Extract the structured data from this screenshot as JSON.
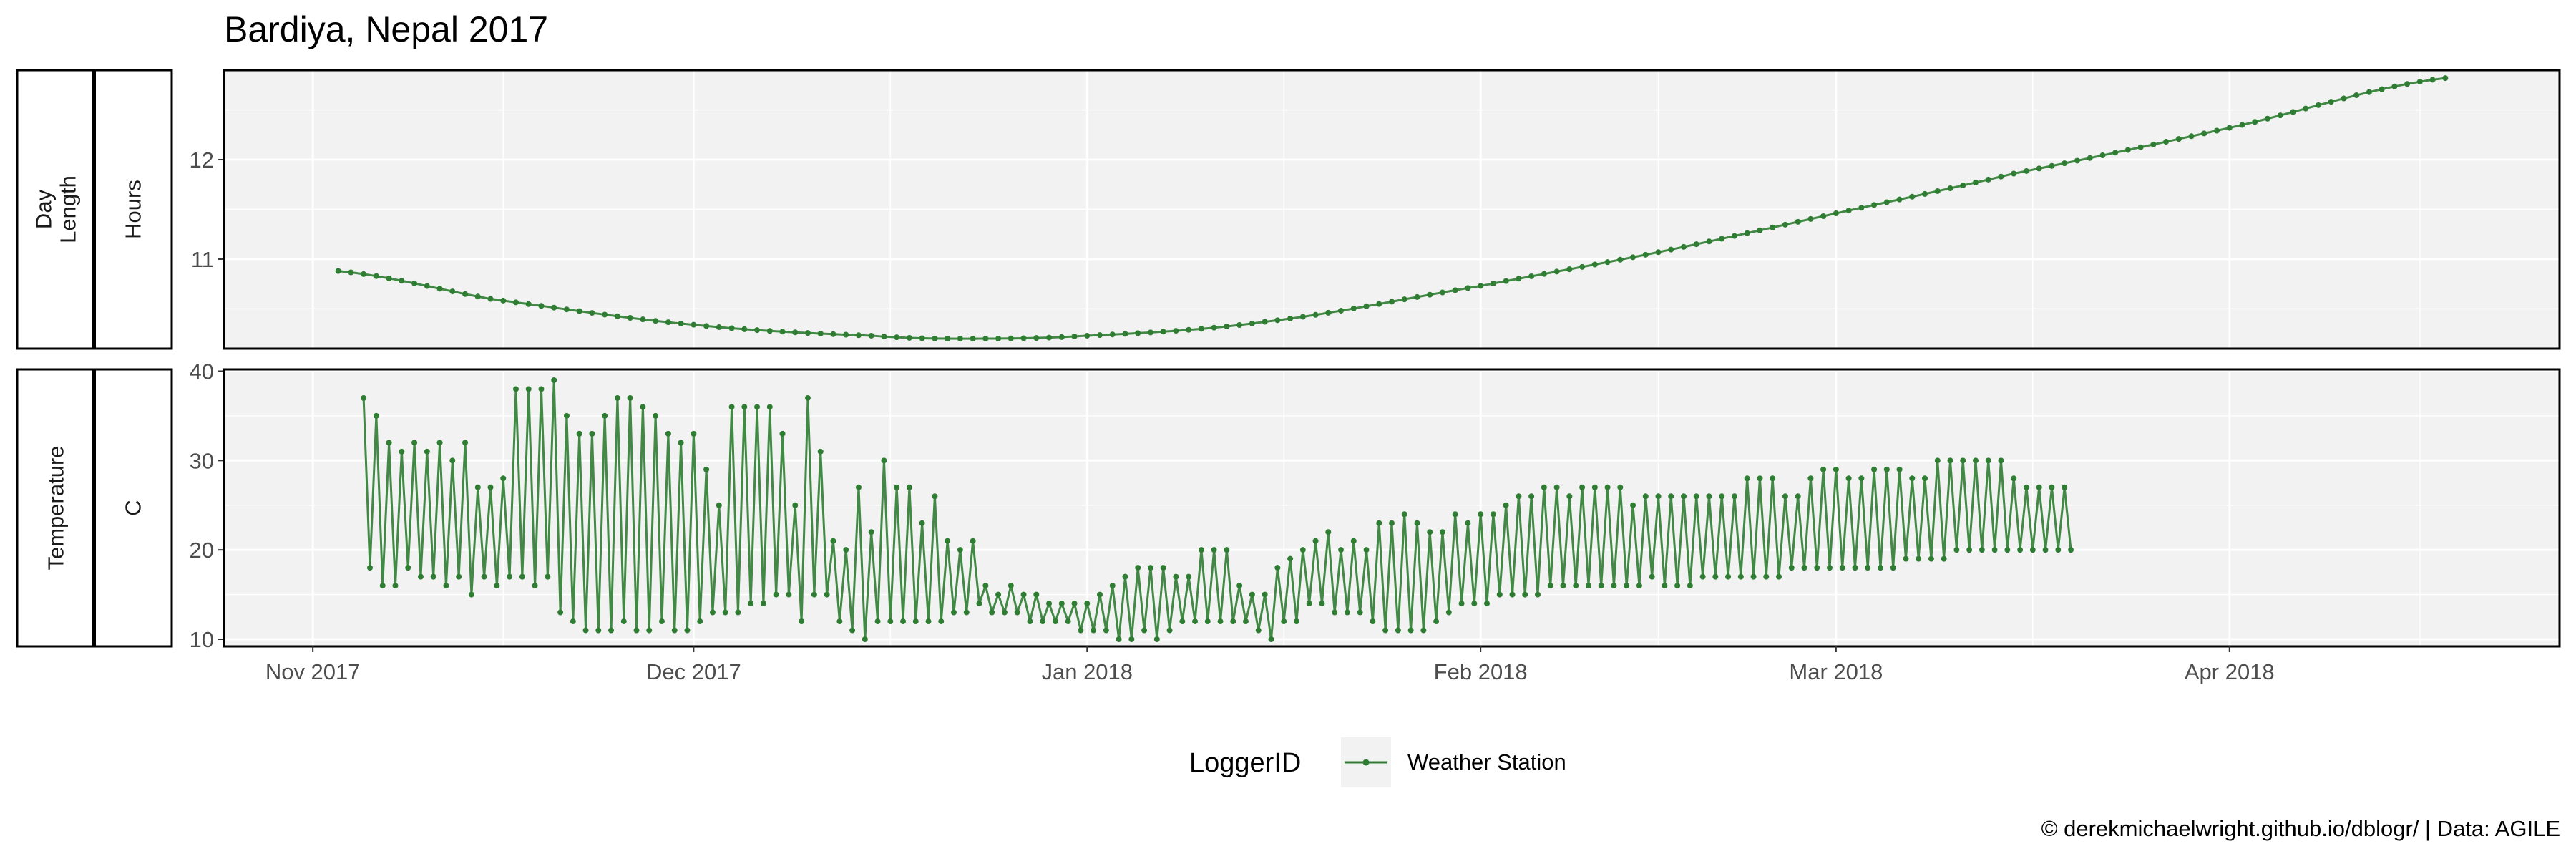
{
  "chart_data": {
    "type": "line",
    "title": "Bardiya, Nepal 2017",
    "caption": "© derekmichaelwright.github.io/dblogr/ | Data: AGILE",
    "legend": {
      "title": "LoggerID",
      "position": "bottom",
      "entries": [
        "Weather Station"
      ]
    },
    "x_axis": {
      "type": "date",
      "range": [
        "2017-10-25",
        "2018-04-27"
      ],
      "ticks": [
        {
          "date": "2017-11-01",
          "label": "Nov 2017"
        },
        {
          "date": "2017-12-01",
          "label": "Dec 2017"
        },
        {
          "date": "2018-01-01",
          "label": "Jan 2018"
        },
        {
          "date": "2018-02-01",
          "label": "Feb 2018"
        },
        {
          "date": "2018-03-01",
          "label": "Mar 2018"
        },
        {
          "date": "2018-04-01",
          "label": "Apr 2018"
        }
      ]
    },
    "grid": true,
    "colors": {
      "series": "#2e7d32",
      "panel_bg": "#f2f2f2",
      "grid_major": "#ffffff",
      "border": "#000000"
    },
    "facets": [
      {
        "name": "day-length",
        "strip_outer": "Day\nLength",
        "strip_inner": "Hours",
        "ylim": [
          10.1,
          12.9
        ],
        "yticks": [
          11,
          12
        ],
        "series": [
          {
            "name": "Weather Station",
            "x_start": "2017-11-03",
            "x_step_days": 1,
            "curve_points": [
              [
                "2017-11-03",
                10.88
              ],
              [
                "2017-11-15",
                10.6
              ],
              [
                "2017-12-01",
                10.34
              ],
              [
                "2017-12-15",
                10.23
              ],
              [
                "2017-12-22",
                10.2
              ],
              [
                "2018-01-01",
                10.23
              ],
              [
                "2018-01-15",
                10.37
              ],
              [
                "2018-02-01",
                10.73
              ],
              [
                "2018-02-15",
                11.07
              ],
              [
                "2018-03-01",
                11.46
              ],
              [
                "2018-03-15",
                11.86
              ],
              [
                "2018-04-01",
                12.32
              ],
              [
                "2018-04-18",
                12.82
              ]
            ]
          }
        ]
      },
      {
        "name": "temperature",
        "strip_outer": "Temperature",
        "strip_inner": "C",
        "ylim": [
          9.2,
          40.2
        ],
        "yticks": [
          10,
          20,
          30,
          40
        ],
        "series": [
          {
            "name": "Weather Station",
            "x_start": "2017-11-05",
            "x_step_days": 0.5,
            "daily_max": [
              37,
              35,
              32,
              31,
              32,
              31,
              32,
              30,
              32,
              27,
              27,
              28,
              38,
              38,
              38,
              39,
              35,
              33,
              33,
              35,
              37,
              37,
              36,
              35,
              33,
              32,
              33,
              29,
              25,
              36,
              36,
              36,
              36,
              33,
              25,
              37,
              31,
              21,
              20,
              27,
              22,
              30,
              27,
              27,
              23,
              26,
              21,
              20,
              21,
              16,
              15,
              16,
              15,
              15,
              14,
              14,
              14,
              14,
              15,
              16,
              17,
              18,
              18,
              18,
              17,
              17,
              20,
              20,
              20,
              16,
              15,
              15,
              18,
              19,
              20,
              21,
              22,
              20,
              21,
              20,
              23,
              23,
              24,
              23,
              22,
              22,
              24,
              23,
              24,
              24,
              25,
              26,
              26,
              27,
              27,
              26,
              27,
              27,
              27,
              27,
              25,
              26,
              26,
              26,
              26,
              26,
              26,
              26,
              26,
              28,
              28,
              28,
              26,
              26,
              28,
              29,
              29,
              28,
              28,
              29,
              29,
              29,
              28,
              28,
              30,
              30,
              30,
              30,
              30,
              30,
              28,
              27,
              27,
              27,
              27
            ],
            "daily_min": [
              18,
              16,
              16,
              18,
              17,
              17,
              16,
              17,
              15,
              17,
              16,
              17,
              17,
              16,
              17,
              13,
              12,
              11,
              11,
              11,
              12,
              11,
              11,
              12,
              11,
              11,
              12,
              13,
              13,
              13,
              14,
              14,
              15,
              15,
              12,
              15,
              15,
              12,
              11,
              10,
              12,
              12,
              12,
              12,
              12,
              12,
              13,
              13,
              14,
              13,
              13,
              13,
              12,
              12,
              12,
              12,
              11,
              11,
              11,
              10,
              10,
              11,
              10,
              11,
              12,
              12,
              12,
              12,
              12,
              12,
              11,
              10,
              12,
              12,
              14,
              14,
              13,
              13,
              13,
              12,
              11,
              11,
              11,
              11,
              12,
              13,
              14,
              14,
              14,
              15,
              15,
              15,
              15,
              16,
              16,
              16,
              16,
              16,
              16,
              16,
              16,
              17,
              16,
              16,
              16,
              17,
              17,
              17,
              17,
              17,
              17,
              17,
              18,
              18,
              18,
              18,
              18,
              18,
              18,
              18,
              18,
              19,
              19,
              19,
              19,
              20,
              20,
              20,
              20,
              20,
              20,
              20,
              20,
              20,
              20
            ]
          }
        ]
      }
    ]
  }
}
